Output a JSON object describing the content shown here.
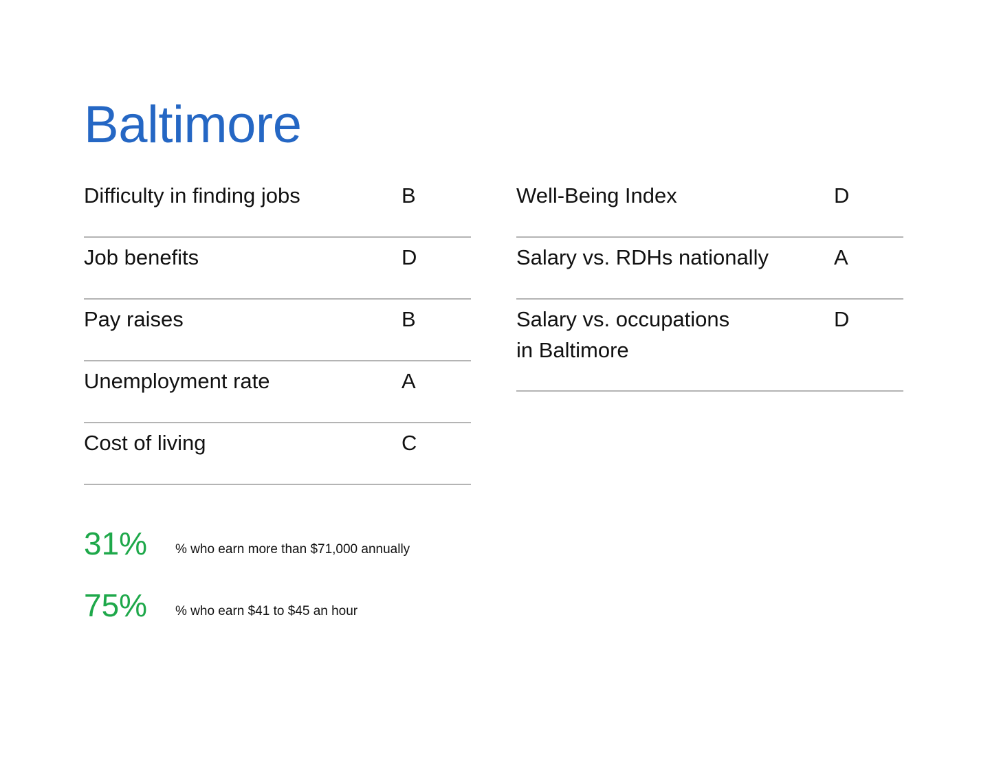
{
  "title": "Baltimore",
  "colors": {
    "title": "#2567c4",
    "stat_value": "#1ea84a",
    "divider": "#b4b4b4"
  },
  "grades_left": [
    {
      "label": "Difficulty in finding jobs",
      "grade": "B"
    },
    {
      "label": "Job benefits",
      "grade": "D"
    },
    {
      "label": "Pay raises",
      "grade": "B"
    },
    {
      "label": "Unemployment rate",
      "grade": "A"
    },
    {
      "label": "Cost of living",
      "grade": "C"
    }
  ],
  "grades_right": [
    {
      "label": "Well-Being Index",
      "grade": "D"
    },
    {
      "label": "Salary vs. RDHs nationally",
      "grade": "A"
    },
    {
      "label": "Salary vs. occupations\nin Baltimore",
      "grade": "D"
    }
  ],
  "stats": [
    {
      "value": "31%",
      "description": "% who earn more than $71,000 annually"
    },
    {
      "value": "75%",
      "description": "% who earn $41 to $45 an hour"
    }
  ]
}
